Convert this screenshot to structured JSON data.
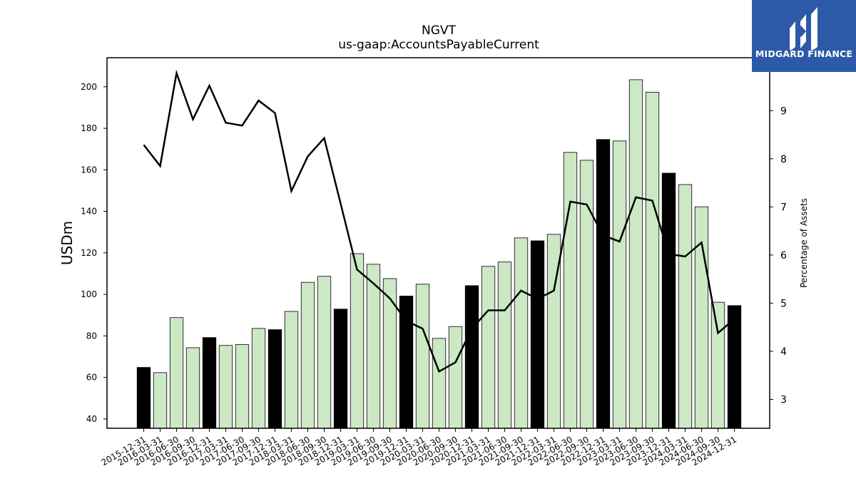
{
  "chart_data": {
    "type": "bar",
    "title": "NGVT",
    "subtitle": "us-gaap:AccountsPayableCurrent",
    "ylabel": "USDm",
    "y2label": "Percentage of Assets",
    "ylim": [
      35.5,
      214
    ],
    "y2lim": [
      2.4,
      10.1
    ],
    "yticks": [
      40,
      60,
      80,
      100,
      120,
      140,
      160,
      180,
      200
    ],
    "y2ticks": [
      3,
      4,
      5,
      6,
      7,
      8,
      9
    ],
    "categories": [
      "2015-12-31",
      "2016-03-31",
      "2016-06-30",
      "2016-09-30",
      "2016-12-31",
      "2017-03-31",
      "2017-06-30",
      "2017-09-30",
      "2017-12-31",
      "2018-03-31",
      "2018-06-30",
      "2018-09-30",
      "2018-12-31",
      "2019-03-31",
      "2019-06-30",
      "2019-09-30",
      "2019-12-31",
      "2020-03-31",
      "2020-06-30",
      "2020-09-30",
      "2020-12-31",
      "2021-03-31",
      "2021-06-30",
      "2021-09-30",
      "2021-12-31",
      "2022-03-31",
      "2022-06-30",
      "2022-09-30",
      "2022-12-31",
      "2023-03-31",
      "2023-06-30",
      "2023-09-30",
      "2023-12-31",
      "2024-03-31",
      "2024-06-30",
      "2024-09-30",
      "2024-12-31"
    ],
    "series": [
      {
        "kind": "bar",
        "values": [
          64.8,
          62.3,
          88.8,
          74.3,
          79.2,
          75.4,
          75.8,
          83.6,
          83.0,
          91.8,
          105.8,
          108.7,
          92.9,
          119.6,
          114.5,
          107.6,
          99.2,
          104.9,
          78.8,
          84.5,
          104.2,
          113.5,
          115.6,
          127.2,
          125.8,
          128.9,
          168.4,
          164.6,
          174.6,
          173.9,
          203.4,
          197.4,
          158.4,
          152.9,
          142.2,
          96.2,
          94.6
        ]
      },
      {
        "kind": "line",
        "axis": "right",
        "values": [
          8.29,
          7.85,
          9.78,
          8.82,
          9.52,
          8.75,
          8.69,
          9.21,
          8.95,
          7.33,
          8.05,
          8.43,
          7.07,
          5.7,
          5.41,
          5.1,
          4.63,
          4.47,
          3.58,
          3.77,
          4.47,
          4.85,
          4.85,
          5.26,
          5.09,
          5.26,
          7.11,
          7.05,
          6.41,
          6.28,
          7.2,
          7.13,
          6.02,
          5.97,
          6.26,
          4.38,
          4.67
        ]
      }
    ],
    "colors": {
      "bar_default": "#cce8c5",
      "bar_year_end": "#000000",
      "bar_edge": "#000000",
      "line": "#000000",
      "logo_bg": "#2c5aa8"
    }
  },
  "logo": {
    "text": "MIDGARD FINANCE",
    "icon": "midgard-logo-icon"
  }
}
